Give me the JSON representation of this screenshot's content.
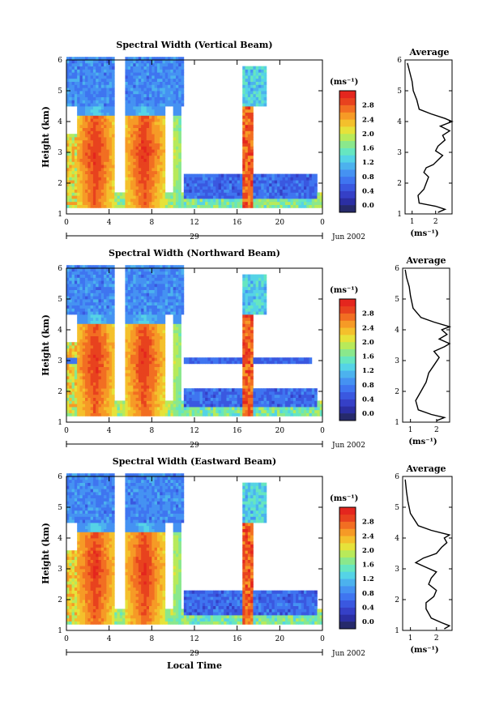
{
  "chart_data": [
    {
      "type": "heatmap",
      "title": "Spectral Width (Vertical Beam)",
      "ylabel": "Height (km)",
      "xlabel": "",
      "ylim": [
        1,
        6
      ],
      "xlim": [
        0,
        24
      ],
      "x_ticks": [
        "0",
        "4",
        "8",
        "12",
        "16",
        "20",
        "0"
      ],
      "y_ticks": [
        "1",
        "2",
        "3",
        "4",
        "5",
        "6"
      ],
      "date_label": "29",
      "month_label": "Jun 2002",
      "colorbar": {
        "unit": "(ms⁻¹)",
        "ticks": [
          "0.0",
          "0.4",
          "0.8",
          "1.2",
          "1.6",
          "2.0",
          "2.4",
          "2.8"
        ]
      },
      "average_profile": {
        "title": "Average",
        "xlabel": "(ms⁻¹)",
        "x_ticks": [
          "1",
          "2"
        ],
        "xlim": [
          0.7,
          2.7
        ],
        "points": [
          [
            2.1,
            1.05
          ],
          [
            2.4,
            1.15
          ],
          [
            2.0,
            1.25
          ],
          [
            1.3,
            1.35
          ],
          [
            1.25,
            1.6
          ],
          [
            1.5,
            1.8
          ],
          [
            1.6,
            2.0
          ],
          [
            1.7,
            2.2
          ],
          [
            1.5,
            2.35
          ],
          [
            1.6,
            2.5
          ],
          [
            1.9,
            2.6
          ],
          [
            2.1,
            2.75
          ],
          [
            2.3,
            2.9
          ],
          [
            2.0,
            3.05
          ],
          [
            2.1,
            3.2
          ],
          [
            2.4,
            3.4
          ],
          [
            2.3,
            3.55
          ],
          [
            2.6,
            3.7
          ],
          [
            2.2,
            3.85
          ],
          [
            2.7,
            4.0
          ],
          [
            2.4,
            4.1
          ],
          [
            1.8,
            4.25
          ],
          [
            1.3,
            4.4
          ],
          [
            1.2,
            4.7
          ],
          [
            1.05,
            5.0
          ],
          [
            1.0,
            5.3
          ],
          [
            0.9,
            5.6
          ],
          [
            0.8,
            5.9
          ]
        ]
      }
    },
    {
      "type": "heatmap",
      "title": "Spectral Width (Northward Beam)",
      "ylabel": "Height (km)",
      "xlabel": "",
      "ylim": [
        1,
        6
      ],
      "xlim": [
        0,
        24
      ],
      "x_ticks": [
        "0",
        "4",
        "8",
        "12",
        "16",
        "20",
        "0"
      ],
      "y_ticks": [
        "1",
        "2",
        "3",
        "4",
        "5",
        "6"
      ],
      "date_label": "29",
      "month_label": "Jun 2002",
      "colorbar": {
        "unit": "(ms⁻¹)",
        "ticks": [
          "0.0",
          "0.4",
          "0.8",
          "1.2",
          "1.6",
          "2.0",
          "2.4",
          "2.8"
        ]
      },
      "average_profile": {
        "title": "Average",
        "xlabel": "(ms⁻¹)",
        "x_ticks": [
          "1",
          "2"
        ],
        "xlim": [
          0.7,
          2.5
        ],
        "points": [
          [
            2.0,
            1.05
          ],
          [
            2.3,
            1.15
          ],
          [
            1.8,
            1.25
          ],
          [
            1.3,
            1.4
          ],
          [
            1.2,
            1.7
          ],
          [
            1.4,
            2.0
          ],
          [
            1.6,
            2.3
          ],
          [
            1.7,
            2.6
          ],
          [
            1.9,
            2.85
          ],
          [
            2.1,
            3.1
          ],
          [
            1.9,
            3.3
          ],
          [
            2.3,
            3.45
          ],
          [
            2.5,
            3.55
          ],
          [
            2.1,
            3.7
          ],
          [
            2.4,
            3.85
          ],
          [
            2.2,
            4.0
          ],
          [
            2.5,
            4.1
          ],
          [
            1.9,
            4.25
          ],
          [
            1.4,
            4.4
          ],
          [
            1.1,
            4.7
          ],
          [
            1.0,
            5.1
          ],
          [
            0.95,
            5.4
          ],
          [
            0.85,
            5.7
          ],
          [
            0.8,
            5.95
          ]
        ]
      }
    },
    {
      "type": "heatmap",
      "title": "Spectral Width (Eastward Beam)",
      "ylabel": "Height (km)",
      "xlabel": "Local Time",
      "ylim": [
        1,
        6
      ],
      "xlim": [
        0,
        24
      ],
      "x_ticks": [
        "0",
        "4",
        "8",
        "12",
        "16",
        "20",
        "0"
      ],
      "y_ticks": [
        "1",
        "2",
        "3",
        "4",
        "5",
        "6"
      ],
      "date_label": "29",
      "month_label": "Jun 2002",
      "colorbar": {
        "unit": "(ms⁻¹)",
        "ticks": [
          "0.0",
          "0.4",
          "0.8",
          "1.2",
          "1.6",
          "2.0",
          "2.4",
          "2.8"
        ]
      },
      "average_profile": {
        "title": "Average",
        "xlabel": "(ms⁻¹)",
        "x_ticks": [
          "1",
          "2"
        ],
        "xlim": [
          0.7,
          2.6
        ],
        "points": [
          [
            2.3,
            1.05
          ],
          [
            2.5,
            1.15
          ],
          [
            2.2,
            1.25
          ],
          [
            1.8,
            1.4
          ],
          [
            1.6,
            1.7
          ],
          [
            1.6,
            1.9
          ],
          [
            1.9,
            2.1
          ],
          [
            2.0,
            2.3
          ],
          [
            1.7,
            2.5
          ],
          [
            1.8,
            2.7
          ],
          [
            2.0,
            2.9
          ],
          [
            1.6,
            3.05
          ],
          [
            1.2,
            3.2
          ],
          [
            1.5,
            3.35
          ],
          [
            2.0,
            3.5
          ],
          [
            2.2,
            3.7
          ],
          [
            2.4,
            3.85
          ],
          [
            2.3,
            4.0
          ],
          [
            2.5,
            4.1
          ],
          [
            1.8,
            4.25
          ],
          [
            1.3,
            4.4
          ],
          [
            1.0,
            4.8
          ],
          [
            0.9,
            5.2
          ],
          [
            0.85,
            5.5
          ],
          [
            0.8,
            5.9
          ]
        ]
      }
    }
  ],
  "colors": {
    "jet": [
      "#2b2fa3",
      "#3540c7",
      "#3a58e0",
      "#3f75f0",
      "#4592f2",
      "#4cb2ee",
      "#55d3e6",
      "#66e6c0",
      "#8ae88c",
      "#b8ea5a",
      "#e6e23a",
      "#f4c02c",
      "#f69a26",
      "#f26e22",
      "#e8421e",
      "#e4261e"
    ],
    "cb_bottom": "#262a6b"
  }
}
